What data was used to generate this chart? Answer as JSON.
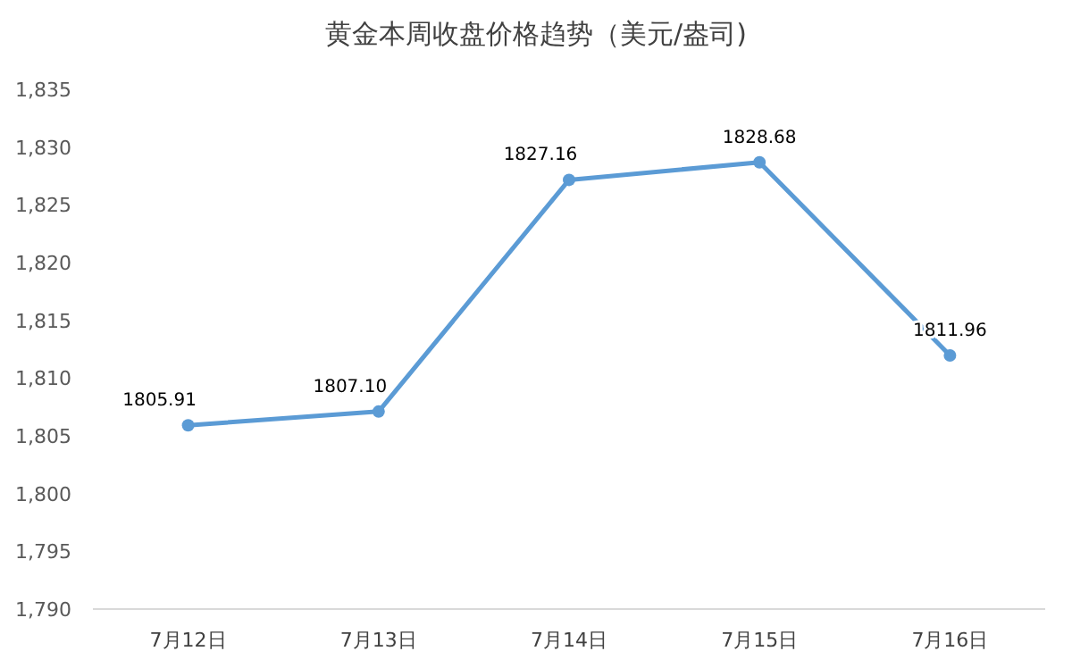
{
  "chart_data": {
    "type": "line",
    "title": "黄金本周收盘价格趋势（美元/盎司)",
    "categories": [
      "7月12日",
      "7月13日",
      "7月14日",
      "7月15日",
      "7月16日"
    ],
    "series": [
      {
        "color": "#5b9bd5",
        "values": [
          1805.91,
          1807.1,
          1827.16,
          1828.68,
          1811.96
        ],
        "value_labels": [
          "1805.91",
          "1807.10",
          "1827.16",
          "1828.68",
          "1811.96"
        ]
      }
    ],
    "ylim": [
      1790,
      1835
    ],
    "yticks": [
      {
        "value": 1790,
        "label": "1,790"
      },
      {
        "value": 1795,
        "label": "1,795"
      },
      {
        "value": 1800,
        "label": "1,800"
      },
      {
        "value": 1805,
        "label": "1,805"
      },
      {
        "value": 1810,
        "label": "1,810"
      },
      {
        "value": 1815,
        "label": "1,815"
      },
      {
        "value": 1820,
        "label": "1,820"
      },
      {
        "value": 1825,
        "label": "1,825"
      },
      {
        "value": 1830,
        "label": "1,830"
      },
      {
        "value": 1835,
        "label": "1,835"
      }
    ],
    "marker": "circle",
    "line_style": "solid",
    "grid": false
  }
}
